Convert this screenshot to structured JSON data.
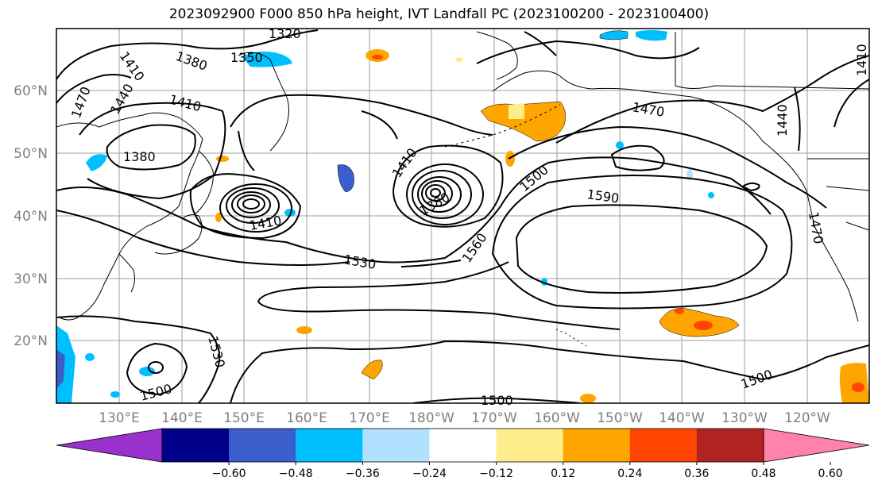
{
  "title": "2023092900 F000 850 hPa height, IVT Landfall PC (2023100200 - 2023100400)",
  "lat_labels": [
    "60°N",
    "50°N",
    "40°N",
    "30°N",
    "20°N"
  ],
  "lon_labels": [
    "130°E",
    "140°E",
    "150°E",
    "160°E",
    "170°E",
    "180°W",
    "170°W",
    "160°W",
    "150°W",
    "140°W",
    "130°W",
    "120°W"
  ],
  "contour_labels": [
    "1320",
    "1350",
    "1380",
    "1410",
    "1440",
    "1470",
    "1410",
    "1380",
    "1410",
    "1470",
    "1500",
    "1590",
    "1410",
    "1380",
    "1530",
    "1560",
    "1530",
    "1500",
    "1500",
    "1500",
    "1470",
    "1440",
    "1410"
  ],
  "colorbar": {
    "ticks": [
      "−0.60",
      "−0.48",
      "−0.36",
      "−0.24",
      "−0.12",
      "0.12",
      "0.24",
      "0.36",
      "0.48",
      "0.60"
    ],
    "colors": [
      "#9932cc",
      "#00008b",
      "#3a5fcd",
      "#00bfff",
      "#b0e2ff",
      "#ffffff",
      "#ffec8b",
      "#ffa500",
      "#ff4500",
      "#b22222",
      "#ff82ab"
    ]
  }
}
